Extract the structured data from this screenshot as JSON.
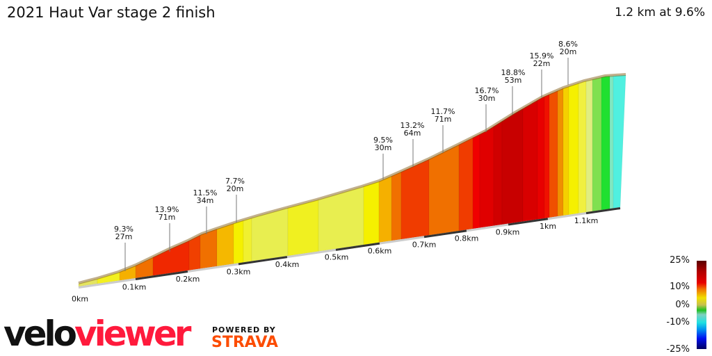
{
  "header": {
    "title": "2021 Haut Var stage 2 finish",
    "summary": "1.2 km at 9.6%"
  },
  "chart_data": {
    "type": "area",
    "title": "2021 Haut Var stage 2 finish",
    "x_unit": "km",
    "x_ticks": [
      "0km",
      "0.1km",
      "0.2km",
      "0.3km",
      "0.4km",
      "0.5km",
      "0.6km",
      "0.7km",
      "0.8km",
      "0.9km",
      "1km",
      "1.1km"
    ],
    "total_distance_km": 1.2,
    "average_gradient_pct": 9.6,
    "annotations": [
      {
        "grade": "9.3%",
        "length": "27m"
      },
      {
        "grade": "13.9%",
        "length": "71m"
      },
      {
        "grade": "11.5%",
        "length": "34m"
      },
      {
        "grade": "7.7%",
        "length": "20m"
      },
      {
        "grade": "9.5%",
        "length": "30m"
      },
      {
        "grade": "13.2%",
        "length": "64m"
      },
      {
        "grade": "11.7%",
        "length": "71m"
      },
      {
        "grade": "16.7%",
        "length": "30m"
      },
      {
        "grade": "18.8%",
        "length": "53m"
      },
      {
        "grade": "15.9%",
        "length": "22m"
      },
      {
        "grade": "8.6%",
        "length": "20m"
      }
    ],
    "segment_colors": [
      "#e4e460",
      "#f3f020",
      "#f5b000",
      "#f07000",
      "#f02800",
      "#f04000",
      "#f07000",
      "#f5b800",
      "#f5f000",
      "#f0f030",
      "#e8ee50",
      "#f0f020",
      "#e8ee50",
      "#f5f000",
      "#f5b000",
      "#f07000",
      "#f03c00",
      "#f07000",
      "#f03c00",
      "#f00000",
      "#e00000",
      "#d00000",
      "#c80000",
      "#d80000",
      "#e80000",
      "#f01000",
      "#f05000",
      "#f09000",
      "#f5d000",
      "#f5f000",
      "#f0f040",
      "#e0ee80",
      "#80e050",
      "#20e030",
      "#80e8c0",
      "#50f0e0"
    ],
    "legend": {
      "labels": [
        "25%",
        "10%",
        "0%",
        "-10%",
        "-25%"
      ],
      "colors": [
        "#5a0000",
        "#e80000",
        "#f0e000",
        "#20c020",
        "#20e0e0",
        "#0010f0",
        "#000060"
      ]
    }
  },
  "branding": {
    "logo_velo": "velo",
    "logo_viewer": "viewer",
    "powered_by": "POWERED BY",
    "strava": "STRAVA"
  }
}
